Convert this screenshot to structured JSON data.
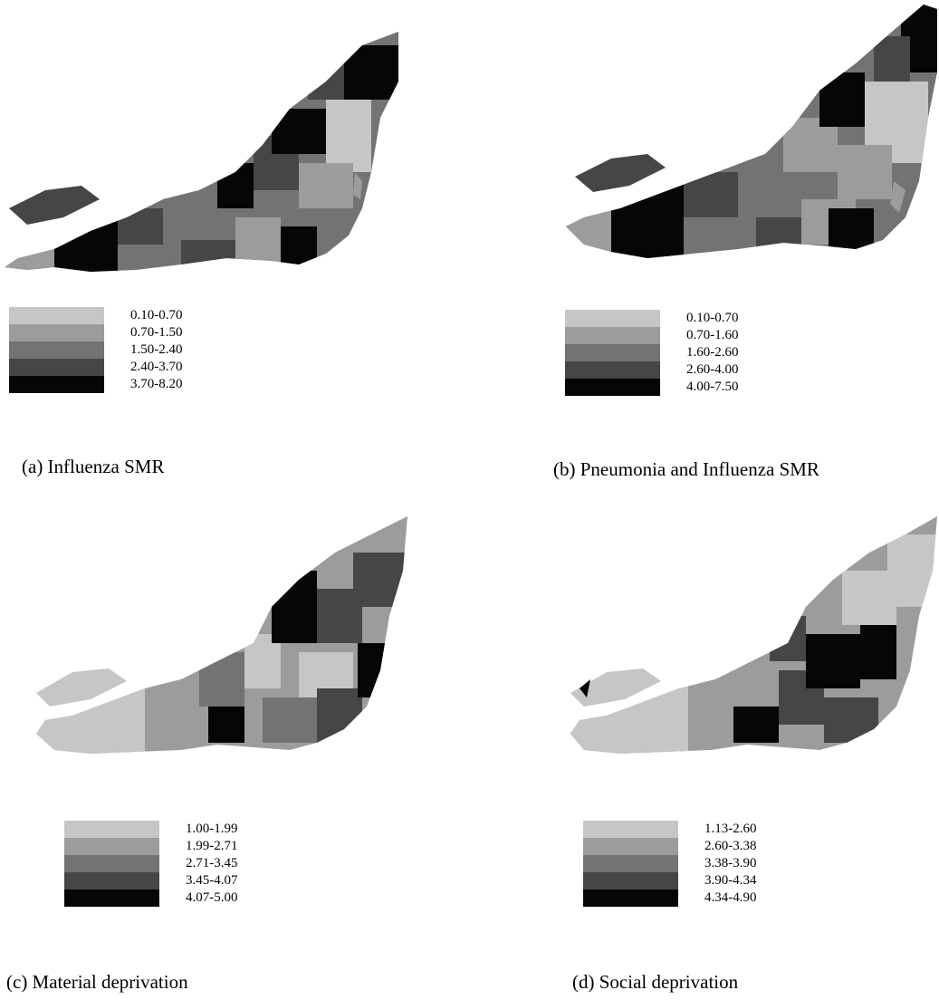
{
  "shade_colors": [
    "#c6c6c6",
    "#9c9c9c",
    "#737373",
    "#464646",
    "#060606"
  ],
  "panels": [
    {
      "caption": "(a) Influenza SMR",
      "legend": [
        "0.10-0.70",
        "0.70-1.50",
        "1.50-2.40",
        "2.40-3.70",
        "3.70-8.20"
      ]
    },
    {
      "caption": "(b) Pneumonia and Influenza SMR",
      "legend": [
        "0.10-0.70",
        "0.70-1.60",
        "1.60-2.60",
        "2.60-4.00",
        "4.00-7.50"
      ]
    },
    {
      "caption": "(c) Material deprivation",
      "legend": [
        "1.00-1.99",
        "1.99-2.71",
        "2.71-3.45",
        "3.45-4.07",
        "4.07-5.00"
      ]
    },
    {
      "caption": "(d) Social deprivation",
      "legend": [
        "1.13-2.60",
        "2.60-3.38",
        "3.38-3.90",
        "3.90-4.34",
        "4.34-4.90"
      ]
    }
  ]
}
